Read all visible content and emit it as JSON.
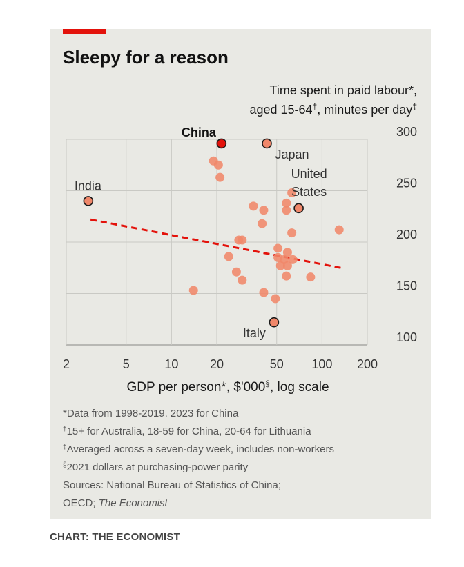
{
  "chart_data": {
    "type": "scatter",
    "title": "Sleepy for a reason",
    "ylabel_line1": "Time spent in paid labour*,",
    "ylabel_line2_a": "aged 15-64",
    "ylabel_line2_sup1": "†",
    "ylabel_line2_b": ", minutes per day",
    "ylabel_line2_sup2": "‡",
    "xlabel_a": "GDP per person*, $'000",
    "xlabel_sup": "§",
    "xlabel_b": ", log scale",
    "x_scale": "log",
    "xlim": [
      2,
      200
    ],
    "ylim": [
      100,
      300
    ],
    "x_ticks": [
      2,
      5,
      10,
      20,
      50,
      100,
      200
    ],
    "x_tick_labels": [
      "2",
      "5",
      "10",
      "20",
      "50",
      "100",
      "200"
    ],
    "y_ticks": [
      100,
      150,
      200,
      250,
      300
    ],
    "y_tick_labels": [
      "100",
      "150",
      "200",
      "250",
      "300"
    ],
    "grid": true,
    "colors": {
      "point": "#f0876a",
      "highlight_fill": "#e3120b",
      "outlined_fill": "#f0876a",
      "trend": "#e3120b",
      "accent": "#e3120b",
      "background": "#e9e9e4"
    },
    "trendline": {
      "x": [
        2.9,
        133
      ],
      "y": [
        222,
        175
      ],
      "style": "dashed"
    },
    "labeled_points": [
      {
        "label": "China",
        "x": 21.5,
        "y": 296,
        "highlight": "china"
      },
      {
        "label": "Japan",
        "x": 43,
        "y": 296,
        "highlight": "outlined"
      },
      {
        "label": "India",
        "x": 2.8,
        "y": 240,
        "highlight": "outlined"
      },
      {
        "label_line1": "United",
        "label_line2": "States",
        "x": 70,
        "y": 233,
        "highlight": "outlined"
      },
      {
        "label": "Italy",
        "x": 48,
        "y": 122,
        "highlight": "outlined"
      }
    ],
    "points": [
      {
        "x": 19,
        "y": 279
      },
      {
        "x": 20.5,
        "y": 275
      },
      {
        "x": 21,
        "y": 263
      },
      {
        "x": 35,
        "y": 235
      },
      {
        "x": 41,
        "y": 231
      },
      {
        "x": 40,
        "y": 218
      },
      {
        "x": 58,
        "y": 238
      },
      {
        "x": 58,
        "y": 231
      },
      {
        "x": 63,
        "y": 248
      },
      {
        "x": 63,
        "y": 209
      },
      {
        "x": 130,
        "y": 212
      },
      {
        "x": 28,
        "y": 202
      },
      {
        "x": 29.5,
        "y": 202
      },
      {
        "x": 51,
        "y": 194
      },
      {
        "x": 59,
        "y": 190
      },
      {
        "x": 51,
        "y": 185
      },
      {
        "x": 56,
        "y": 183
      },
      {
        "x": 64,
        "y": 183
      },
      {
        "x": 53,
        "y": 177
      },
      {
        "x": 59,
        "y": 177
      },
      {
        "x": 58,
        "y": 167
      },
      {
        "x": 84,
        "y": 166
      },
      {
        "x": 24,
        "y": 186
      },
      {
        "x": 27,
        "y": 171
      },
      {
        "x": 29.5,
        "y": 163
      },
      {
        "x": 14,
        "y": 153
      },
      {
        "x": 41,
        "y": 151
      },
      {
        "x": 49,
        "y": 145
      }
    ]
  },
  "notes": {
    "note1": "*Data from 1998-2019. 2023 for China",
    "note2_sup": "†",
    "note2": "15+ for Australia, 18-59 for China, 20-64 for Lithuania",
    "note3_sup": "‡",
    "note3": "Averaged across a seven-day week, includes non-workers",
    "note4_sup": "§",
    "note4": "2021 dollars at purchasing-power parity",
    "sources_line1": "Sources: National Bureau of Statistics of China;",
    "sources_line2_a": "OECD; ",
    "sources_line2_b": "The Economist"
  },
  "credit": "CHART: THE ECONOMIST"
}
